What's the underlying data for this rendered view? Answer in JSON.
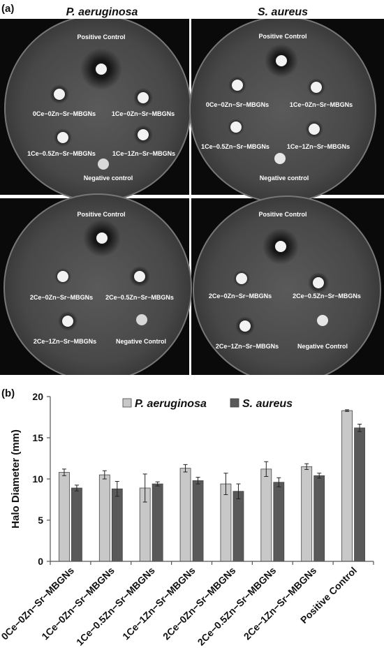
{
  "panel_a_label": "(a)",
  "panel_b_label": "(b)",
  "columns": [
    "P. aeruginosa",
    "S. aureus"
  ],
  "plates": [
    {
      "id": "top-left",
      "labels": [
        "Positive Control",
        "0Ce−0Zn−Sr−MBGNs",
        "1Ce−0Zn−Sr−MBGNs",
        "1Ce−0.5Zn−Sr−MBGNs",
        "1Ce−1Zn−Sr−MBGNs",
        "Negative control"
      ]
    },
    {
      "id": "top-right",
      "labels": [
        "Positive Control",
        "0Ce−0Zn−Sr−MBGNs",
        "1Ce−0Zn−Sr−MBGNs",
        "1Ce−0.5Zn−Sr−MBGNs",
        "1Ce−1Zn−Sr−MBGNs",
        "Negative control"
      ]
    },
    {
      "id": "bottom-left",
      "labels": [
        "Positive Control",
        "2Ce−0Zn−Sr−MBGNs",
        "2Ce−0.5Zn−Sr−MBGNs",
        "2Ce−1Zn−Sr−MBGNs",
        "Negative Control"
      ]
    },
    {
      "id": "bottom-right",
      "labels": [
        "Positive Control",
        "2Ce−0Zn−Sr−MBGNs",
        "2Ce−0.5Zn−Sr−MBGNs",
        "2Ce−1Zn−Sr−MBGNs",
        "Negative Control"
      ]
    }
  ],
  "chart_data": {
    "type": "bar",
    "title": "",
    "xlabel": "",
    "ylabel": "Halo Diameter (mm)",
    "ylim": [
      0,
      20
    ],
    "yticks": [
      0,
      5,
      10,
      15,
      20
    ],
    "legend_position": "top",
    "categories": [
      "0Ce−0Zn−Sr−MBGNs",
      "1Ce−0Zn−Sr−MBGNs",
      "1Ce−0.5Zn−Sr−MBGNs",
      "1Ce−1Zn−Sr−MBGNs",
      "2Ce−0Zn−Sr−MBGNs",
      "2Ce−0.5Zn−Sr−MBGNs",
      "2Ce−1Zn−Sr−MBGNs",
      "Positive Control"
    ],
    "series": [
      {
        "name": "P. aeruginosa",
        "color": "#c8c8c8",
        "values": [
          10.8,
          10.5,
          8.9,
          11.3,
          9.4,
          11.2,
          11.5,
          18.3
        ],
        "errors": [
          0.4,
          0.5,
          1.7,
          0.45,
          1.3,
          0.9,
          0.35,
          0.1
        ]
      },
      {
        "name": "S. aureus",
        "color": "#595959",
        "values": [
          8.9,
          8.8,
          9.4,
          9.8,
          8.5,
          9.6,
          10.4,
          16.2
        ],
        "errors": [
          0.35,
          0.9,
          0.25,
          0.4,
          0.9,
          0.55,
          0.3,
          0.45
        ]
      }
    ]
  }
}
